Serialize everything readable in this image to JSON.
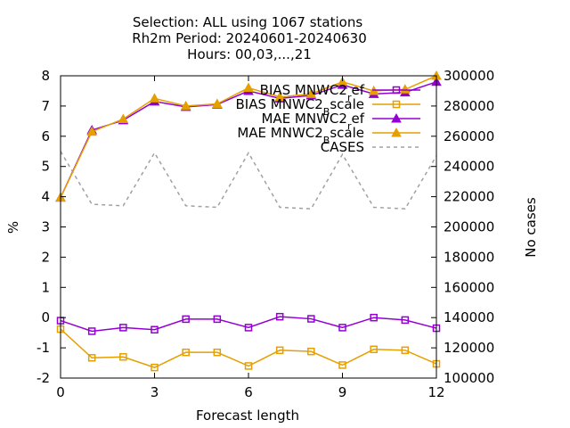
{
  "chart_data": {
    "type": "line",
    "title": [
      "Selection: ALL using  1067 stations",
      "Rh2m   Period: 20240601-20240630",
      "Hours: 00,03,...,21"
    ],
    "xlabel": "Forecast length",
    "ylabel": "%",
    "y2label": "No cases",
    "xlim": [
      0,
      12
    ],
    "ylim": [
      -2,
      8
    ],
    "y2lim": [
      100000,
      300000
    ],
    "xticks": [
      "0",
      "3",
      "6",
      "9",
      "12"
    ],
    "xtick_values": [
      0,
      3,
      6,
      9,
      12
    ],
    "yticks": [
      "-2",
      "-1",
      "0",
      "1",
      "2",
      "3",
      "4",
      "5",
      "6",
      "7",
      "8"
    ],
    "yticks_values": [
      -2,
      -1,
      0,
      1,
      2,
      3,
      4,
      5,
      6,
      7,
      8
    ],
    "y2ticks": [
      "100000",
      "120000",
      "140000",
      "160000",
      "180000",
      "200000",
      "220000",
      "240000",
      "260000",
      "280000",
      "300000"
    ],
    "y2ticks_values": [
      100000,
      120000,
      140000,
      160000,
      180000,
      200000,
      220000,
      240000,
      260000,
      280000,
      300000
    ],
    "legend_position": "top-right",
    "x": [
      0,
      1,
      2,
      3,
      4,
      5,
      6,
      7,
      8,
      9,
      10,
      11,
      12
    ],
    "series": [
      {
        "name": "BIAS MNWC2",
        "sub": "r",
        "suffix": "ef",
        "axis": "y",
        "color": "#9400d3",
        "marker": "square",
        "dash": "solid",
        "values": [
          -0.1,
          -0.45,
          -0.33,
          -0.4,
          -0.05,
          -0.05,
          -0.33,
          0.03,
          -0.04,
          -0.33,
          0.0,
          -0.08,
          -0.35
        ]
      },
      {
        "name": "BIAS MNWC2",
        "sub": "B",
        "suffix": "scale",
        "axis": "y",
        "color": "#e69f00",
        "marker": "square",
        "dash": "solid",
        "values": [
          -0.38,
          -1.33,
          -1.3,
          -1.65,
          -1.15,
          -1.15,
          -1.6,
          -1.08,
          -1.12,
          -1.57,
          -1.05,
          -1.08,
          -1.53
        ]
      },
      {
        "name": "MAE MNWC2",
        "sub": "r",
        "suffix": "ef",
        "axis": "y",
        "color": "#9400d3",
        "marker": "triangle",
        "dash": "solid",
        "values": [
          3.97,
          6.2,
          6.53,
          7.15,
          6.97,
          7.05,
          7.5,
          7.25,
          7.35,
          7.7,
          7.4,
          7.45,
          7.8
        ]
      },
      {
        "name": "MAE MNWC2",
        "sub": "B",
        "suffix": "scale",
        "axis": "y",
        "color": "#e69f00",
        "marker": "triangle",
        "dash": "solid",
        "values": [
          3.97,
          6.15,
          6.57,
          7.25,
          7.0,
          7.07,
          7.6,
          7.3,
          7.4,
          7.8,
          7.5,
          7.55,
          8.0
        ]
      },
      {
        "name": "CASES",
        "sub": "",
        "suffix": "",
        "axis": "y2",
        "color": "#a0a0a0",
        "marker": "none",
        "dash": "dashed",
        "values": [
          250000,
          215000,
          214000,
          249000,
          214000,
          213000,
          249000,
          213000,
          212000,
          248000,
          213000,
          212000,
          247000
        ]
      }
    ]
  }
}
